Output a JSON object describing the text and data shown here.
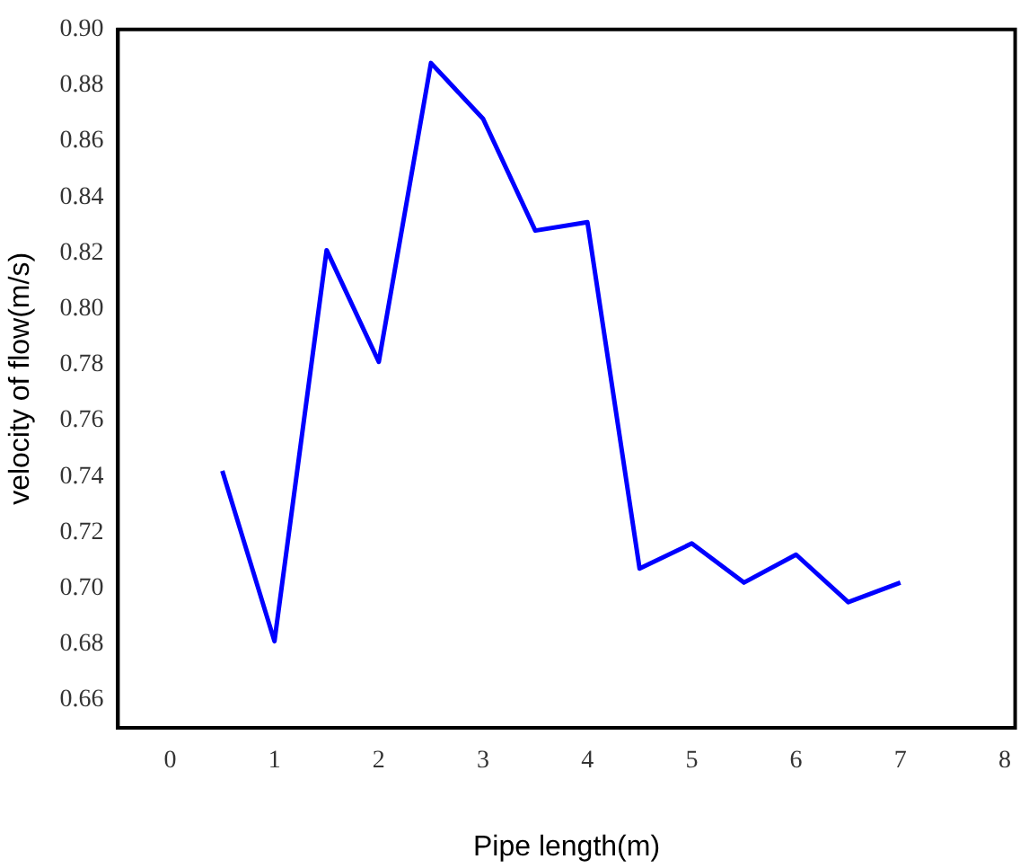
{
  "chart_data": {
    "type": "line",
    "xlabel": "Pipe length(m)",
    "ylabel": "velocity of flow(m/s)",
    "x": [
      0.5,
      1,
      1.5,
      2,
      2.5,
      3,
      3.5,
      4,
      4.5,
      5,
      5.5,
      6,
      6.5,
      7
    ],
    "series": [
      {
        "color": "#0000ff",
        "values": [
          0.742,
          0.681,
          0.821,
          0.781,
          0.888,
          0.868,
          0.828,
          0.831,
          0.707,
          0.716,
          0.702,
          0.712,
          0.695,
          0.702
        ]
      }
    ],
    "xlim": [
      -0.5,
      8.1
    ],
    "xticks": [
      0,
      1,
      2,
      3,
      4,
      5,
      6,
      7,
      8
    ],
    "ylim": [
      0.65,
      0.9
    ],
    "yticks": [
      0.66,
      0.68,
      {
        "value": 0.7,
        "label": "0.70"
      },
      0.72,
      0.74,
      0.76,
      0.78,
      {
        "value": 0.8,
        "label": "0.80"
      },
      0.82,
      0.84,
      0.86,
      0.88,
      {
        "value": 0.9,
        "label": "0.90"
      }
    ],
    "grid": false,
    "legend": false,
    "marker": "none",
    "line_style": "solid"
  }
}
